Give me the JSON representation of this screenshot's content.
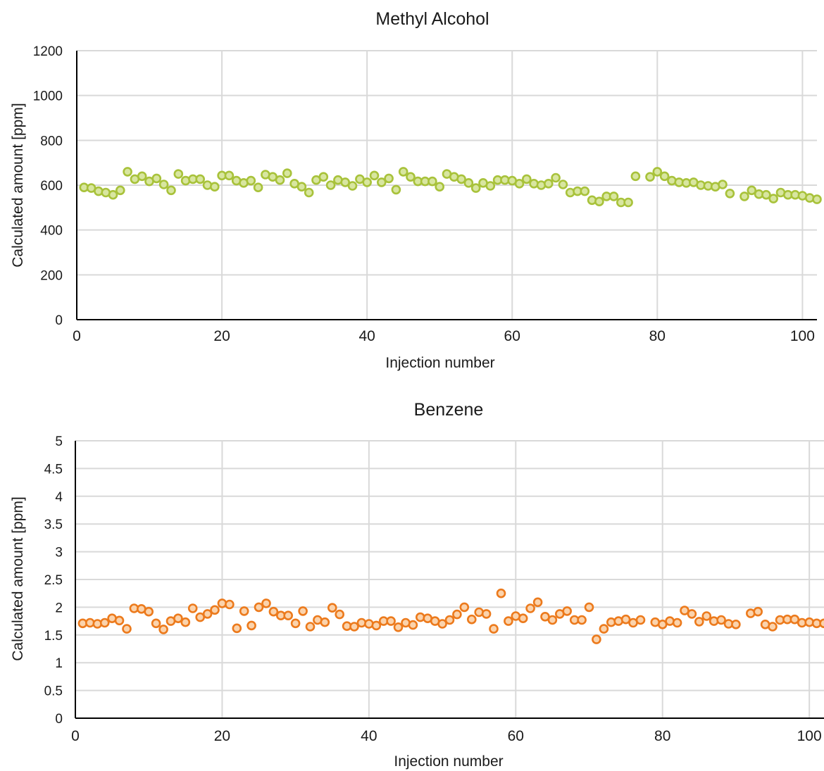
{
  "chart_data": [
    {
      "type": "scatter",
      "title": "Methyl Alcohol",
      "xlabel": "Injection number",
      "ylabel": "Calculated amount [ppm]",
      "xlim": [
        0,
        102
      ],
      "ylim": [
        0,
        1200
      ],
      "xticks": [
        "0",
        "20",
        "40",
        "60",
        "80",
        "100"
      ],
      "yticks": [
        "0",
        "200",
        "400",
        "600",
        "800",
        "1000",
        "1200"
      ],
      "grid": true,
      "marker_fill": "#d8e6a0",
      "marker_edge": "#a8c23a",
      "x": [
        1,
        2,
        3,
        4,
        5,
        6,
        7,
        8,
        9,
        10,
        11,
        12,
        13,
        14,
        15,
        16,
        17,
        18,
        19,
        20,
        21,
        22,
        23,
        24,
        25,
        26,
        27,
        28,
        29,
        30,
        31,
        32,
        33,
        34,
        35,
        36,
        37,
        38,
        39,
        40,
        41,
        42,
        43,
        44,
        45,
        46,
        47,
        48,
        49,
        50,
        51,
        52,
        53,
        54,
        55,
        56,
        57,
        58,
        59,
        60,
        61,
        62,
        63,
        64,
        65,
        66,
        67,
        68,
        69,
        70,
        71,
        72,
        73,
        74,
        75,
        76,
        77,
        79,
        80,
        81,
        82,
        83,
        84,
        85,
        86,
        87,
        88,
        89,
        90,
        92,
        93,
        94,
        95,
        96,
        97,
        98,
        99,
        100,
        101,
        102
      ],
      "y": [
        590,
        587,
        573,
        567,
        557,
        577,
        660,
        627,
        640,
        617,
        630,
        603,
        577,
        650,
        620,
        627,
        627,
        600,
        593,
        643,
        643,
        620,
        610,
        620,
        590,
        647,
        637,
        623,
        653,
        607,
        593,
        567,
        623,
        637,
        600,
        623,
        613,
        597,
        627,
        613,
        643,
        613,
        630,
        580,
        660,
        637,
        617,
        617,
        617,
        593,
        650,
        637,
        627,
        610,
        587,
        610,
        597,
        623,
        623,
        620,
        607,
        627,
        607,
        600,
        607,
        633,
        603,
        567,
        573,
        573,
        533,
        527,
        550,
        550,
        523,
        523,
        640,
        637,
        660,
        640,
        620,
        613,
        610,
        613,
        600,
        597,
        593,
        603,
        563,
        550,
        577,
        560,
        557,
        540,
        567,
        557,
        557,
        553,
        543,
        537
      ]
    },
    {
      "type": "scatter",
      "title": "Benzene",
      "xlabel": "Injection number",
      "ylabel": "Calculated amount [ppm]",
      "xlim": [
        0,
        102
      ],
      "ylim": [
        0,
        5
      ],
      "xticks": [
        "0",
        "20",
        "40",
        "60",
        "80",
        "100"
      ],
      "yticks": [
        "0",
        "0.5",
        "1",
        "1.5",
        "2",
        "2.5",
        "3",
        "3.5",
        "4",
        "4.5",
        "5"
      ],
      "grid": true,
      "marker_fill": "#fbd3ac",
      "marker_edge": "#ec7a1c",
      "x": [
        1,
        2,
        3,
        4,
        5,
        6,
        7,
        8,
        9,
        10,
        11,
        12,
        13,
        14,
        15,
        16,
        17,
        18,
        19,
        20,
        21,
        22,
        23,
        24,
        25,
        26,
        27,
        28,
        29,
        30,
        31,
        32,
        33,
        34,
        35,
        36,
        37,
        38,
        39,
        40,
        41,
        42,
        43,
        44,
        45,
        46,
        47,
        48,
        49,
        50,
        51,
        52,
        53,
        54,
        55,
        56,
        57,
        58,
        59,
        60,
        61,
        62,
        63,
        64,
        65,
        66,
        67,
        68,
        69,
        70,
        71,
        72,
        73,
        74,
        75,
        76,
        77,
        79,
        80,
        81,
        82,
        83,
        84,
        85,
        86,
        87,
        88,
        89,
        90,
        92,
        93,
        94,
        95,
        96,
        97,
        98,
        99,
        100,
        101,
        102
      ],
      "y": [
        1.71,
        1.72,
        1.7,
        1.72,
        1.8,
        1.76,
        1.61,
        1.98,
        1.97,
        1.92,
        1.71,
        1.6,
        1.75,
        1.8,
        1.73,
        1.98,
        1.82,
        1.88,
        1.95,
        2.07,
        2.05,
        1.62,
        1.93,
        1.67,
        2.0,
        2.07,
        1.92,
        1.85,
        1.85,
        1.71,
        1.93,
        1.65,
        1.77,
        1.73,
        1.99,
        1.87,
        1.66,
        1.65,
        1.72,
        1.7,
        1.67,
        1.75,
        1.75,
        1.64,
        1.72,
        1.68,
        1.82,
        1.8,
        1.75,
        1.7,
        1.77,
        1.87,
        2.0,
        1.78,
        1.91,
        1.88,
        1.61,
        2.25,
        1.75,
        1.84,
        1.8,
        1.98,
        2.09,
        1.83,
        1.77,
        1.88,
        1.93,
        1.77,
        1.77,
        2.0,
        1.42,
        1.61,
        1.73,
        1.75,
        1.78,
        1.72,
        1.77,
        1.73,
        1.69,
        1.75,
        1.72,
        1.94,
        1.88,
        1.74,
        1.84,
        1.75,
        1.77,
        1.7,
        1.69,
        1.89,
        1.92,
        1.69,
        1.65,
        1.77,
        1.78,
        1.78,
        1.72,
        1.73,
        1.71,
        1.71
      ]
    }
  ]
}
